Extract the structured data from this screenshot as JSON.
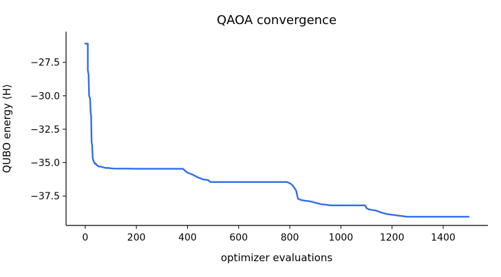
{
  "chart_data": {
    "type": "line",
    "title": "QAOA convergence",
    "xlabel": "optimizer evaluations",
    "ylabel": "QUBO energy ⟨H⟩",
    "xlim": [
      -75,
      1575
    ],
    "ylim": [
      -39.7,
      -25.2
    ],
    "xticks": [
      0,
      200,
      400,
      600,
      800,
      1000,
      1200,
      1400
    ],
    "xtick_labels": [
      "0",
      "200",
      "400",
      "600",
      "800",
      "1000",
      "1200",
      "1400"
    ],
    "yticks": [
      -27.5,
      -30.0,
      -32.5,
      -35.0,
      -37.5
    ],
    "ytick_labels": [
      "−27.5",
      "−30.0",
      "−32.5",
      "−35.0",
      "−37.5"
    ],
    "grid": false,
    "spines": "left-bottom",
    "series": [
      {
        "name": "",
        "color": "#2f6cf0",
        "x": [
          0,
          10,
          10,
          13,
          15,
          17,
          19,
          21,
          23,
          25,
          27,
          29,
          31,
          33,
          35,
          37,
          39,
          41,
          43,
          45,
          50,
          55,
          60,
          70,
          80,
          90,
          100,
          110,
          120,
          140,
          160,
          200,
          250,
          300,
          350,
          382,
          390,
          400,
          420,
          440,
          460,
          480,
          490,
          520,
          600,
          700,
          790,
          795,
          805,
          815,
          825,
          832,
          838,
          845,
          860,
          880,
          900,
          920,
          940,
          960,
          1000,
          1050,
          1095,
          1100,
          1110,
          1125,
          1140,
          1160,
          1180,
          1200,
          1220,
          1240,
          1260,
          1300,
          1400,
          1500
        ],
        "y": [
          -26.1,
          -26.1,
          -28.1,
          -28.4,
          -30.0,
          -30.1,
          -30.2,
          -31.2,
          -31.5,
          -33.5,
          -33.7,
          -34.6,
          -34.8,
          -34.9,
          -35.0,
          -35.0,
          -35.1,
          -35.1,
          -35.1,
          -35.2,
          -35.25,
          -35.3,
          -35.3,
          -35.35,
          -35.4,
          -35.4,
          -35.42,
          -35.44,
          -35.45,
          -35.45,
          -35.45,
          -35.46,
          -35.46,
          -35.46,
          -35.46,
          -35.46,
          -35.6,
          -35.75,
          -35.9,
          -36.1,
          -36.25,
          -36.3,
          -36.45,
          -36.45,
          -36.45,
          -36.45,
          -36.45,
          -36.5,
          -36.6,
          -36.8,
          -37.1,
          -37.7,
          -37.75,
          -37.8,
          -37.85,
          -37.9,
          -38.0,
          -38.1,
          -38.15,
          -38.2,
          -38.2,
          -38.2,
          -38.2,
          -38.4,
          -38.5,
          -38.55,
          -38.6,
          -38.75,
          -38.85,
          -38.9,
          -38.95,
          -39.0,
          -39.05,
          -39.05,
          -39.05,
          -39.05
        ]
      }
    ]
  }
}
